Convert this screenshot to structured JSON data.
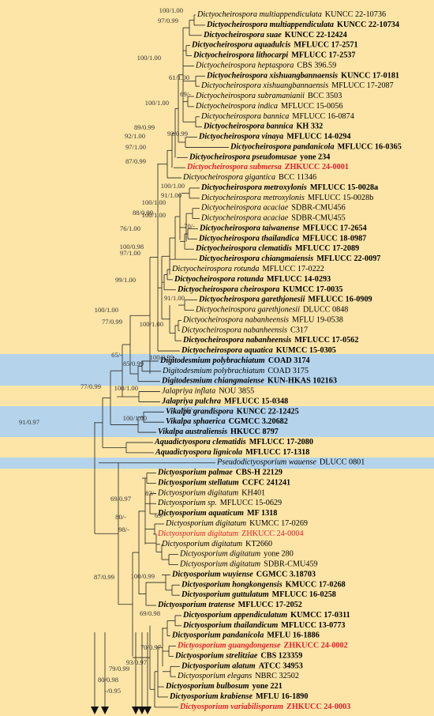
{
  "taxa": [
    {
      "name": "Dictyocheirospora multiappendiculata",
      "strain": "KUNCC 22-10736",
      "bold": false,
      "color": "#000000"
    },
    {
      "name": "Dictyocheirospora multiappendiculata",
      "strain": "KUNCC 22-10734",
      "bold": true,
      "color": "#000000"
    },
    {
      "name": "Dictyocheirospora suae",
      "strain": "KUNCC 22-12424",
      "bold": true,
      "color": "#000000"
    },
    {
      "name": "Dictyocheirospora aquadulcis",
      "strain": "MFLUCC 17-2571",
      "bold": true,
      "color": "#000000"
    },
    {
      "name": "Dictyocheirospora lithocarpi",
      "strain": "MFLUCC 17-2537",
      "bold": true,
      "color": "#000000"
    },
    {
      "name": "Dictyocheirospora heptaspora",
      "strain": "CBS 396.59",
      "bold": false,
      "color": "#000000"
    },
    {
      "name": "Dictyocheirospora xishuangbannaensis",
      "strain": "KUNCC 17-0181",
      "bold": true,
      "color": "#000000"
    },
    {
      "name": "Dictyocheirospora xishuangbannaensis",
      "strain": "MFLUCC 17-2087",
      "bold": false,
      "color": "#000000"
    },
    {
      "name": "Dictyocheirospora subramanianii",
      "strain": "BCC 3503",
      "bold": false,
      "color": "#000000"
    },
    {
      "name": "Dictyocheirospora indica",
      "strain": "MFLUCC 15-0056",
      "bold": false,
      "color": "#000000"
    },
    {
      "name": "Dictyocheirospora bannica",
      "strain": "MFLUCC 16-0874",
      "bold": false,
      "color": "#000000"
    },
    {
      "name": "Dictyocheirospora bannica",
      "strain": "KH 332",
      "bold": true,
      "color": "#000000"
    },
    {
      "name": "Dictyocheirospora vinaya",
      "strain": "MFLUCC 14-0294",
      "bold": true,
      "color": "#000000"
    },
    {
      "name": "Dictyocheirospora pandanicola",
      "strain": "MFLUCC 16-0365",
      "bold": true,
      "color": "#000000"
    },
    {
      "name": "Dictyocheirospora pseudomusae",
      "strain": "yone 234",
      "bold": true,
      "color": "#000000"
    },
    {
      "name": "Dictyocheirospora submersa",
      "strain": "ZHKUCC 24-0001",
      "bold": true,
      "color": "#e3202a"
    },
    {
      "name": "Dictyocheirospora gigantica",
      "strain": "BCC 11346",
      "bold": false,
      "color": "#000000"
    },
    {
      "name": "Dictyocheirospora metroxylonis",
      "strain": "MFLUCC 15-0028a",
      "bold": true,
      "color": "#000000"
    },
    {
      "name": "Dictyocheirospora metroxylonis",
      "strain": "MFLUCC 15-0028b",
      "bold": false,
      "color": "#000000"
    },
    {
      "name": "Dictyocheirospora acaciae",
      "strain": "SDBR-CMU456",
      "bold": false,
      "color": "#000000"
    },
    {
      "name": "Dictyocheirospora acaciae",
      "strain": "SDBR-CMU455",
      "bold": false,
      "color": "#000000"
    },
    {
      "name": "Dictyocheirospora taiwanense",
      "strain": "MFLUCC 17-2654",
      "bold": true,
      "color": "#000000"
    },
    {
      "name": "Dictyocheirospora thailandica",
      "strain": "MFLUCC 18-0987",
      "bold": true,
      "color": "#000000"
    },
    {
      "name": "Dictyocheirospora clematidis",
      "strain": "MFLUCC 17-2089",
      "bold": true,
      "color": "#000000"
    },
    {
      "name": "Dictyocheirospora chiangmaiensis",
      "strain": "MFLUCC 22-0097",
      "bold": true,
      "color": "#000000"
    },
    {
      "name": "Dictyocheirospora rotunda",
      "strain": "MFLUCC 17-0222",
      "bold": false,
      "color": "#000000"
    },
    {
      "name": "Dictyocheirospora rotunda",
      "strain": "MFLUCC 14-0293",
      "bold": true,
      "color": "#000000"
    },
    {
      "name": "Dictyocheirospora cheirospora",
      "strain": "KUMCC 17-0035",
      "bold": true,
      "color": "#000000"
    },
    {
      "name": "Dictyocheirospora garethjonesii",
      "strain": "MFLUCC 16-0909",
      "bold": true,
      "color": "#000000"
    },
    {
      "name": "Dictyocheirospora garethjonesii",
      "strain": "DLUCC 0848",
      "bold": false,
      "color": "#000000"
    },
    {
      "name": "Dictyocheirospora nabanheensis",
      "strain": "MFLU 19-0538",
      "bold": false,
      "color": "#000000"
    },
    {
      "name": "Dictyocheirospora nabanheensis",
      "strain": "C317",
      "bold": false,
      "color": "#000000"
    },
    {
      "name": "Dictyocheirospora nabanheensis",
      "strain": "MFLUCC 17-0562",
      "bold": true,
      "color": "#000000"
    },
    {
      "name": "Dictyocheirospora aquatica",
      "strain": "KUMCC 15-0305",
      "bold": true,
      "color": "#000000"
    },
    {
      "name": "Digitodesmium polybrachiatum",
      "strain": "COAD 3174",
      "bold": true,
      "color": "#000000"
    },
    {
      "name": "Digitodesmium polybrachiatum",
      "strain": "COAD 3175",
      "bold": false,
      "color": "#000000"
    },
    {
      "name": "Digitodesmium chiangmaiense",
      "strain": "KUN-HKAS 102163",
      "bold": true,
      "color": "#000000"
    },
    {
      "name": "Jalapriya inflata",
      "strain": "NOU 3855",
      "bold": false,
      "color": "#000000"
    },
    {
      "name": "Jalapriya pulchra",
      "strain": "MFLUCC 15-0348",
      "bold": true,
      "color": "#000000"
    },
    {
      "name": "Vikalpa grandispora",
      "strain": "KUNCC 22-12425",
      "bold": true,
      "color": "#000000"
    },
    {
      "name": "Vikalpa sphaerica",
      "strain": "CGMCC 3.20682",
      "bold": true,
      "color": "#000000"
    },
    {
      "name": "Vikalpa australiensis",
      "strain": "HKUCC 8797",
      "bold": true,
      "color": "#000000"
    },
    {
      "name": "Aquadictyospora clematidis",
      "strain": "MFLUCC 17-2080",
      "bold": true,
      "color": "#000000"
    },
    {
      "name": "Aquadictyospora lignicola",
      "strain": "MFLUCC 17-1318",
      "bold": true,
      "color": "#000000"
    },
    {
      "name": "Pseudodictyosporium wauense",
      "strain": "DLUCC 0801",
      "bold": false,
      "color": "#000000"
    },
    {
      "name": "Dictyosporium palmae",
      "strain": "CBS-H 22129",
      "bold": true,
      "color": "#000000"
    },
    {
      "name": "Dictyosporium stellatum",
      "strain": "CCFC 241241",
      "bold": true,
      "color": "#000000"
    },
    {
      "name": "Dictyosporium digitatum",
      "strain": "KH401",
      "bold": false,
      "color": "#000000"
    },
    {
      "name": "Dictyosporium sp.",
      "strain": "MFLUCC 15-0629",
      "bold": false,
      "color": "#000000"
    },
    {
      "name": "Dictyosporium aquaticum",
      "strain": "MF 1318",
      "bold": true,
      "color": "#000000"
    },
    {
      "name": "Dictyosporium digitatum",
      "strain": "KUMCC 17-0269",
      "bold": false,
      "color": "#000000"
    },
    {
      "name": "Dictyosporium digitatum",
      "strain": "ZHKUCC 24-0004",
      "bold": false,
      "color": "#e3202a"
    },
    {
      "name": "Dictyosporium digitatum",
      "strain": "KT2660",
      "bold": false,
      "color": "#000000"
    },
    {
      "name": "Dictyosporium digitatum",
      "strain": "yone 280",
      "bold": false,
      "color": "#000000"
    },
    {
      "name": "Dictyosporium digitatum",
      "strain": "SDBR-CMU459",
      "bold": false,
      "color": "#000000"
    },
    {
      "name": "Dictyosporium wuyiense",
      "strain": "CGMCC 3.18703",
      "bold": true,
      "color": "#000000"
    },
    {
      "name": "Dictyosporium hongkongensis",
      "strain": "KMUCC 17-0268",
      "bold": true,
      "color": "#000000"
    },
    {
      "name": "Dictyosporium guttulatum",
      "strain": "MFLUCC 16-0258",
      "bold": true,
      "color": "#000000"
    },
    {
      "name": "Dictyosporium tratense",
      "strain": "MFLUCC 17-2052",
      "bold": true,
      "color": "#000000"
    },
    {
      "name": "Dictyosporium appendiculatum",
      "strain": "KUMCC 17-0311",
      "bold": true,
      "color": "#000000"
    },
    {
      "name": "Dictyosporium thailandicum",
      "strain": "MFLUCC 13-0773",
      "bold": true,
      "color": "#000000"
    },
    {
      "name": "Dictyosporium pandanicola",
      "strain": "MFLU 16-1886",
      "bold": true,
      "color": "#000000"
    },
    {
      "name": "Dictyosporium guangdongense",
      "strain": "ZHKUCC 24-0002",
      "bold": true,
      "color": "#e3202a"
    },
    {
      "name": "Dictyosporium strelitziae",
      "strain": "CBS 123359",
      "bold": true,
      "color": "#000000"
    },
    {
      "name": "Dictyosporium alatum",
      "strain": "ATCC 34953",
      "bold": true,
      "color": "#000000"
    },
    {
      "name": "Dictyosporium elegans",
      "strain": "NBRC 32502",
      "bold": false,
      "color": "#000000"
    },
    {
      "name": "Dictyosporium bulbosum",
      "strain": "yone 221",
      "bold": true,
      "color": "#000000"
    },
    {
      "name": "Dictyosporium krabiense",
      "strain": "MFLU 16-1890",
      "bold": true,
      "color": "#000000"
    },
    {
      "name": "Dictyosporium variabilisporum",
      "strain": "ZHKUCC 24-0003",
      "bold": true,
      "color": "#e3202a"
    }
  ],
  "supports": [
    "100/1.00",
    "97/0.99",
    "100/1.00",
    "61/1.00",
    "69/-",
    "100/1.00",
    "89/0.99",
    "93/0.99",
    "92/1.00",
    "97/1.00",
    "87/0.99",
    "100/1.00",
    "91/1.00",
    "100/1.00",
    "100/1.00",
    "70/-",
    "88/0.99",
    "76/1.00",
    "100/0.98",
    "97/1.00",
    "99/1.00",
    "91/1.00",
    "100/1.00",
    "100/1.00",
    "77/0.99",
    "100/0.99",
    "85/0.99",
    "65/-",
    "77/0.99",
    "100/1.00",
    "66/-",
    "100/1.00",
    "91/0.97",
    "83/-",
    "69/0.97",
    "69/-",
    "80/-",
    "98/-",
    "100/0.99",
    "87/0.99",
    "69/0.98",
    "70/0.97",
    "93/0.97",
    "79/0.99",
    "80/0.98",
    "-/0.95"
  ]
}
